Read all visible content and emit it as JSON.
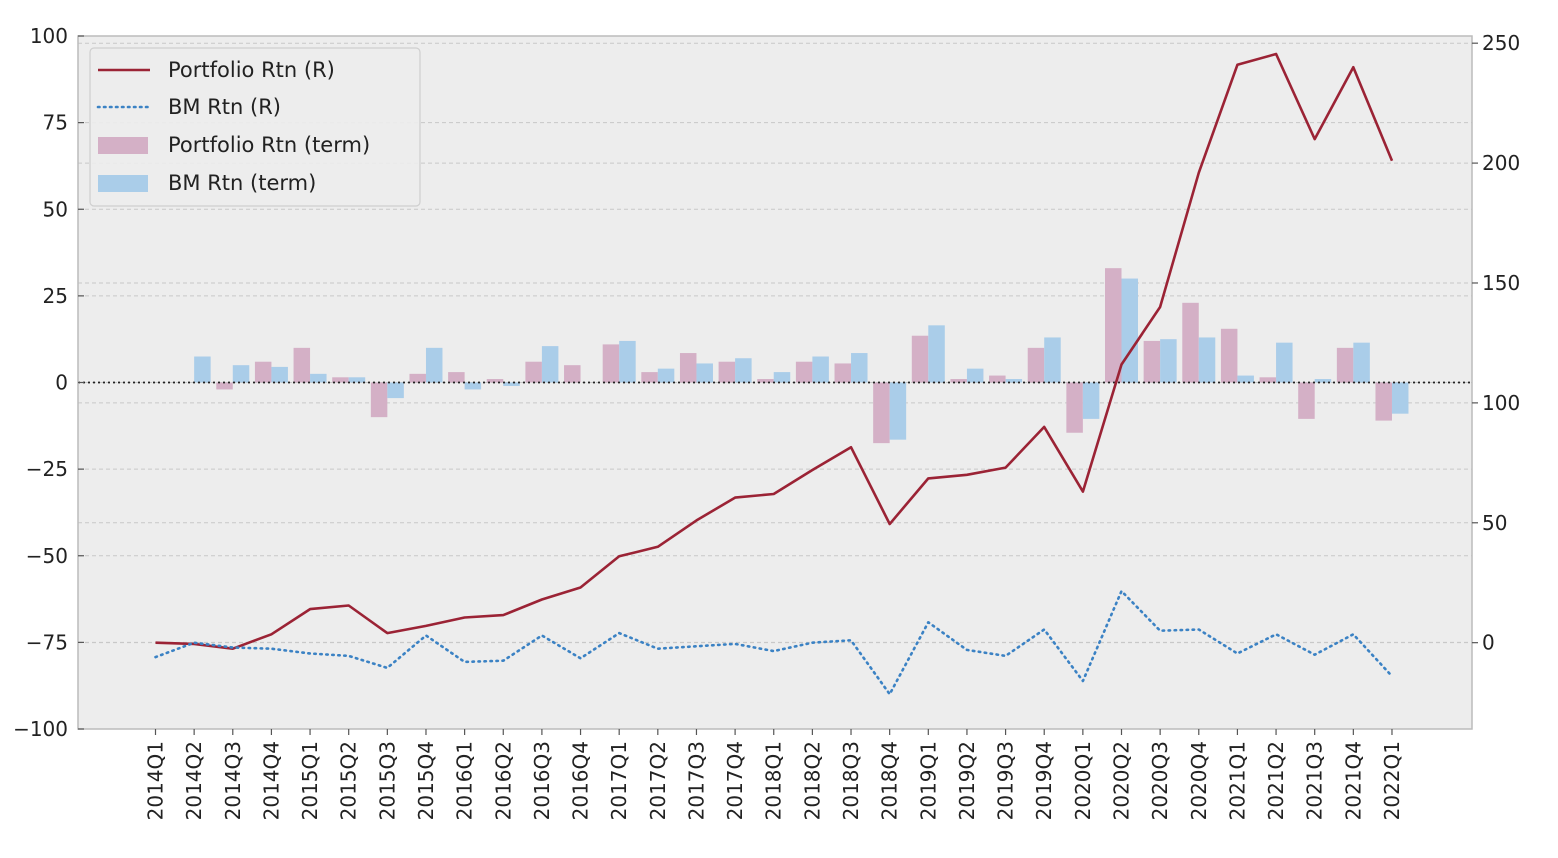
{
  "chart_data": {
    "type": "bar",
    "categories": [
      "2014Q1",
      "2014Q2",
      "2014Q3",
      "2014Q4",
      "2015Q1",
      "2015Q2",
      "2015Q3",
      "2015Q4",
      "2016Q1",
      "2016Q2",
      "2016Q3",
      "2016Q4",
      "2017Q1",
      "2017Q2",
      "2017Q3",
      "2017Q4",
      "2018Q1",
      "2018Q2",
      "2018Q3",
      "2018Q4",
      "2019Q1",
      "2019Q2",
      "2019Q3",
      "2019Q4",
      "2020Q1",
      "2020Q2",
      "2020Q3",
      "2020Q4",
      "2021Q1",
      "2021Q2",
      "2021Q3",
      "2021Q4",
      "2022Q1"
    ],
    "bar_series": [
      {
        "name": "Portfolio Rtn (term)",
        "axis": "left",
        "values": [
          0,
          0,
          -2,
          6,
          10,
          1.5,
          -10,
          2.5,
          3,
          1,
          6,
          5,
          11,
          3,
          8.5,
          6,
          1,
          6,
          5.5,
          -17.5,
          13.5,
          1,
          2,
          10,
          -14.5,
          33,
          12,
          23,
          15.5,
          1.5,
          -10.5,
          10,
          -11
        ]
      },
      {
        "name": "BM Rtn (term)",
        "axis": "left",
        "values": [
          0,
          7.5,
          5,
          4.5,
          2.5,
          1.5,
          -4.5,
          10,
          -2,
          -1,
          10.5,
          0,
          12,
          4,
          5.5,
          7,
          3,
          7.5,
          8.5,
          -16.5,
          16.5,
          4,
          1,
          13,
          -10.5,
          30,
          12.5,
          13,
          2,
          11.5,
          1,
          11.5,
          -9
        ]
      }
    ],
    "line_series": [
      {
        "name": "Portfolio Rtn (R)",
        "axis": "right",
        "style": "solid",
        "values": [
          0,
          -0.5,
          -2.5,
          3.5,
          14,
          15.5,
          4,
          7,
          10.5,
          11.5,
          18,
          23,
          36,
          40,
          51,
          60.5,
          62,
          72,
          81.5,
          49.5,
          68.5,
          70,
          73,
          90,
          63,
          116,
          140,
          196,
          241,
          245.5,
          210,
          240,
          201
        ]
      },
      {
        "name": "BM Rtn (R)",
        "axis": "right",
        "style": "dotted",
        "values": [
          -6,
          0,
          -2,
          -2.5,
          -4.5,
          -5.5,
          -10.5,
          3,
          -8,
          -7.5,
          3,
          -6.5,
          4,
          -2.5,
          -1.5,
          -0.5,
          -3.5,
          0,
          1,
          -21.5,
          8.5,
          -3,
          -5.5,
          5.5,
          -16,
          21.5,
          5,
          5.5,
          -4.5,
          3.5,
          -5,
          3.5,
          -14
        ]
      }
    ],
    "y_left": {
      "ylim": [
        -100,
        100
      ],
      "ticks": [
        100,
        75,
        50,
        25,
        0,
        -25,
        -50,
        -75,
        -100
      ],
      "tick_labels": [
        "100",
        "75",
        "50",
        "25",
        "0",
        "−25",
        "−50",
        "−75",
        "−100"
      ]
    },
    "y_right": {
      "ylim": [
        -36,
        253
      ],
      "ticks": [
        250,
        200,
        150,
        100,
        50,
        0
      ],
      "tick_labels": [
        "250",
        "200",
        "150",
        "100",
        "50",
        "0"
      ]
    },
    "grid": true,
    "zero_line": true,
    "legend_position": "upper-left",
    "legend_entries": [
      {
        "label": "Portfolio Rtn (R)",
        "kind": "line-solid",
        "color": "#9b2335"
      },
      {
        "label": "BM Rtn (R)",
        "kind": "line-dotted",
        "color": "#3b82c4"
      },
      {
        "label": "Portfolio Rtn (term)",
        "kind": "bar",
        "color": "#d4b0c6"
      },
      {
        "label": "BM Rtn (term)",
        "kind": "bar",
        "color": "#aacde9"
      }
    ],
    "colors": {
      "portfolio_line": "#9b2335",
      "bm_line": "#3b82c4",
      "portfolio_bar": "#d4b0c6",
      "bm_bar": "#aacde9",
      "plot_background": "#ededed",
      "grid": "#c8c8c8"
    }
  }
}
